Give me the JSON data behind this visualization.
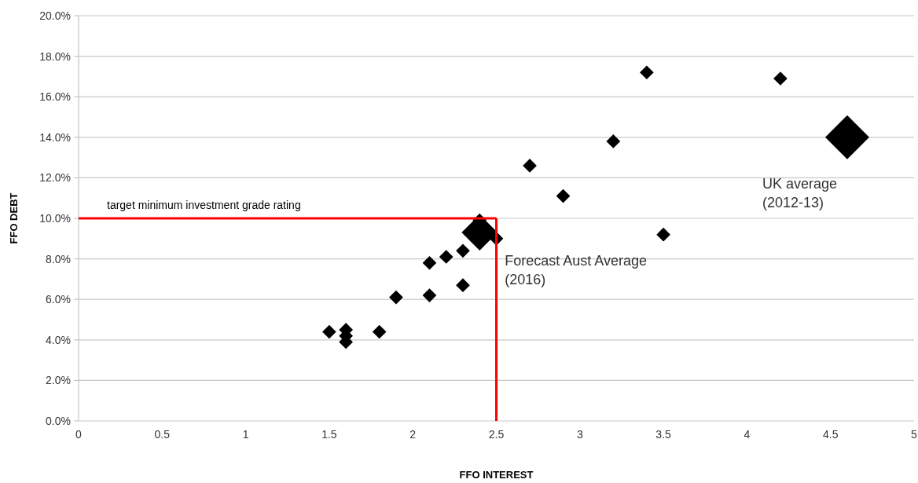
{
  "chart_data": {
    "type": "bubble",
    "xlabel": "FFO INTEREST",
    "ylabel": "FFO DEBT",
    "series": [
      {
        "color": "#000000",
        "x": [
          1.5,
          1.6,
          1.6,
          1.6,
          1.8,
          1.9,
          2.1,
          2.1,
          2.2,
          2.3,
          2.3,
          2.4,
          2.5,
          2.7,
          2.9,
          3.2,
          3.4,
          3.5,
          4.2
        ],
        "values": [
          4.4,
          4.5,
          4.2,
          3.9,
          4.4,
          6.1,
          6.2,
          7.8,
          8.1,
          8.4,
          6.7,
          9.9,
          9.0,
          12.6,
          11.1,
          13.8,
          17.2,
          9.2,
          16.9
        ],
        "sizes": [
          0.1,
          0.1,
          0.1,
          0.1,
          0.1,
          0.1,
          0.1,
          0.1,
          0.1,
          0.1,
          0.1,
          0.1,
          0.1,
          0.1,
          0.1,
          0.1,
          0.1,
          0.1,
          0.1
        ]
      },
      {
        "color": "#000000",
        "x": [
          2.4,
          4.6
        ],
        "values": [
          9.3,
          14.0
        ],
        "sizes": [
          0.67,
          1
        ]
      }
    ],
    "marker": "diamond",
    "grid": "y",
    "xlim": [
      0,
      5
    ],
    "xticks": [
      0,
      0.5,
      1,
      1.5,
      2,
      2.5,
      3,
      3.5,
      4,
      4.5,
      5
    ],
    "ylim": [
      0,
      20
    ],
    "yticks": [
      {
        "value": 0,
        "label": "0.0%"
      },
      {
        "value": 2,
        "label": "2.0%"
      },
      {
        "value": 4,
        "label": "4.0%"
      },
      {
        "value": 6,
        "label": "6.0%"
      },
      {
        "value": 8,
        "label": "8.0%"
      },
      {
        "value": 10,
        "label": "10.0%"
      },
      {
        "value": 12,
        "label": "12.0%"
      },
      {
        "value": 14,
        "label": "14.0%"
      },
      {
        "value": 16,
        "label": "16.0%"
      },
      {
        "value": 18,
        "label": "18.0%"
      },
      {
        "value": 20,
        "label": "20.0%"
      }
    ],
    "ref_lines": [
      {
        "axis": "y",
        "value": 10,
        "label": "target minimum investment grade rating",
        "color": "#ff0000"
      },
      {
        "axis": "x",
        "value": 2.5,
        "color": "#ff0000"
      }
    ],
    "annotations": [
      {
        "text": "Forecast Aust Average (2016)",
        "x": 2.4,
        "y": 9.3
      },
      {
        "text": "UK average (2012-13)",
        "x": 4.6,
        "y": 14.0
      }
    ]
  }
}
